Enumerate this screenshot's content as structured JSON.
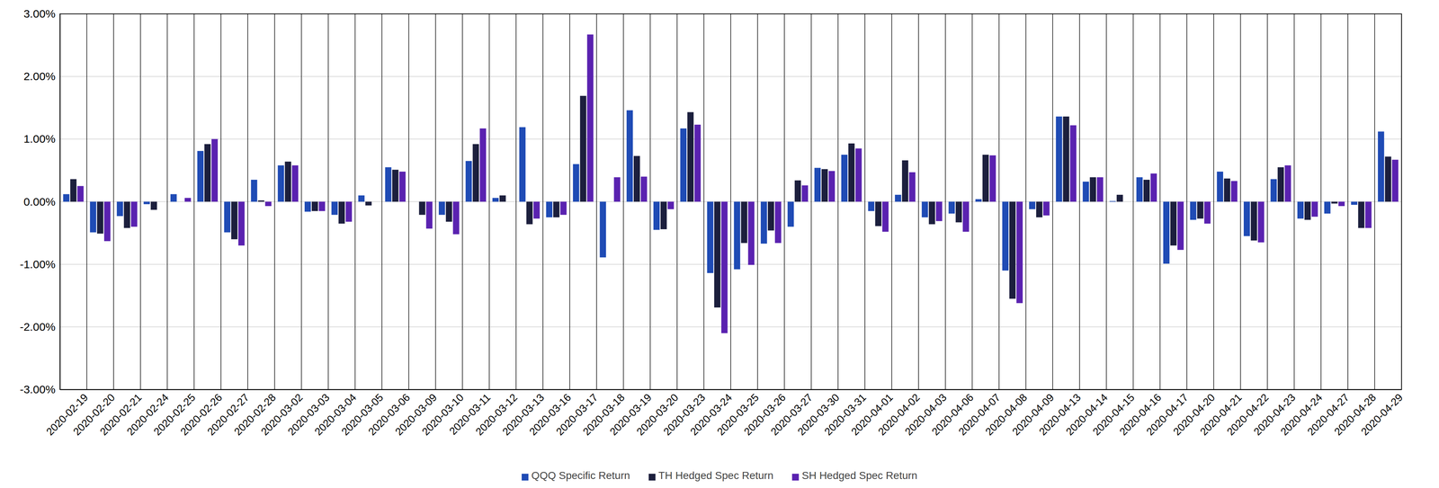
{
  "chart_data": {
    "type": "bar",
    "categories": [
      "2020-02-19",
      "2020-02-20",
      "2020-02-21",
      "2020-02-24",
      "2020-02-25",
      "2020-02-26",
      "2020-02-27",
      "2020-02-28",
      "2020-03-02",
      "2020-03-03",
      "2020-03-04",
      "2020-03-05",
      "2020-03-06",
      "2020-03-09",
      "2020-03-10",
      "2020-03-11",
      "2020-03-12",
      "2020-03-13",
      "2020-03-16",
      "2020-03-17",
      "2020-03-18",
      "2020-03-19",
      "2020-03-20",
      "2020-03-23",
      "2020-03-24",
      "2020-03-25",
      "2020-03-26",
      "2020-03-27",
      "2020-03-30",
      "2020-03-31",
      "2020-04-01",
      "2020-04-02",
      "2020-04-03",
      "2020-04-06",
      "2020-04-07",
      "2020-04-08",
      "2020-04-09",
      "2020-04-13",
      "2020-04-14",
      "2020-04-15",
      "2020-04-16",
      "2020-04-17",
      "2020-04-20",
      "2020-04-21",
      "2020-04-22",
      "2020-04-23",
      "2020-04-24",
      "2020-04-27",
      "2020-04-28",
      "2020-04-29"
    ],
    "series": [
      {
        "name": "QQQ Specific Return",
        "color": "#1f4bb5",
        "values": [
          0.12,
          -0.49,
          -0.23,
          -0.04,
          0.12,
          0.81,
          -0.49,
          0.35,
          0.58,
          -0.16,
          -0.21,
          0.1,
          0.55,
          0.0,
          -0.21,
          0.65,
          0.06,
          1.19,
          -0.25,
          0.6,
          -0.89,
          1.46,
          -0.45,
          1.17,
          -1.14,
          -1.08,
          -0.67,
          -0.4,
          0.54,
          0.75,
          -0.15,
          0.11,
          -0.25,
          -0.19,
          0.04,
          -1.1,
          -0.12,
          1.36,
          0.32,
          0.01,
          0.39,
          -0.99,
          -0.29,
          0.48,
          -0.55,
          0.36,
          -0.27,
          -0.19,
          -0.05,
          1.12
        ]
      },
      {
        "name": "TH Hedged Spec Return",
        "color": "#1c1f3d",
        "values": [
          0.36,
          -0.51,
          -0.42,
          -0.13,
          0.0,
          0.92,
          -0.6,
          0.02,
          0.64,
          -0.15,
          -0.35,
          -0.06,
          0.51,
          -0.21,
          -0.32,
          0.92,
          0.1,
          -0.36,
          -0.25,
          1.69,
          0.0,
          0.73,
          -0.44,
          1.43,
          -1.69,
          -0.66,
          -0.46,
          0.34,
          0.52,
          0.93,
          -0.39,
          0.66,
          -0.36,
          -0.33,
          0.75,
          -1.55,
          -0.25,
          1.36,
          0.39,
          0.11,
          0.35,
          -0.7,
          -0.27,
          0.37,
          -0.62,
          0.55,
          -0.29,
          -0.03,
          -0.42,
          0.72
        ]
      },
      {
        "name": "SH Hedged Spec Return",
        "color": "#5a22b0",
        "values": [
          0.25,
          -0.63,
          -0.4,
          0.0,
          0.06,
          1.0,
          -0.7,
          -0.07,
          0.58,
          -0.15,
          -0.32,
          0.0,
          0.48,
          -0.43,
          -0.52,
          1.17,
          0.0,
          -0.27,
          -0.21,
          2.67,
          0.39,
          0.4,
          -0.12,
          1.23,
          -2.1,
          -1.01,
          -0.66,
          0.26,
          0.49,
          0.85,
          -0.48,
          0.47,
          -0.31,
          -0.48,
          0.74,
          -1.62,
          -0.22,
          1.22,
          0.39,
          0.0,
          0.45,
          -0.77,
          -0.35,
          0.33,
          -0.65,
          0.58,
          -0.24,
          -0.07,
          -0.42,
          0.67
        ]
      }
    ],
    "ylim": [
      -3,
      3
    ],
    "yticks": [
      {
        "value": -3,
        "label": "-3.00%"
      },
      {
        "value": -2,
        "label": "-2.00%"
      },
      {
        "value": -1,
        "label": "-1.00%"
      },
      {
        "value": 0,
        "label": "0.00%"
      },
      {
        "value": 1,
        "label": "1.00%"
      },
      {
        "value": 2,
        "label": "2.00%"
      },
      {
        "value": 3,
        "label": "3.00%"
      }
    ],
    "grid": true,
    "legend": "bottom"
  }
}
